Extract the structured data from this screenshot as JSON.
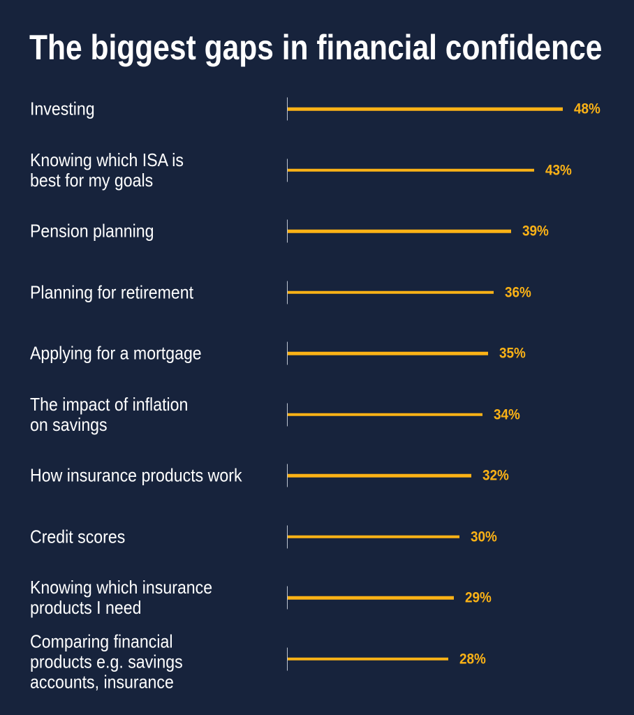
{
  "title": "The biggest gaps in financial confidence",
  "colors": {
    "background": "#17233C",
    "bar": "#FBB216",
    "value_label": "#FBB216",
    "category_label": "#FFFFFF",
    "title": "#FFFFFF",
    "axis_tick": "#BFC6D2"
  },
  "chart_data": {
    "type": "bar",
    "orientation": "horizontal",
    "title": "The biggest gaps in financial confidence",
    "xlabel": "",
    "ylabel": "",
    "xlim": [
      0,
      48
    ],
    "grid": false,
    "legend": false,
    "value_suffix": "%",
    "categories": [
      "Investing",
      "Knowing which ISA is best for my goals",
      "Pension planning",
      "Planning for retirement",
      "Applying for a mortgage",
      "The impact of inflation on savings",
      "How insurance products work",
      "Credit scores",
      "Knowing which insurance products I need",
      "Comparing financial products e.g. savings accounts, insurance"
    ],
    "category_lines": [
      [
        "Investing"
      ],
      [
        "Knowing which ISA is",
        "best for my goals"
      ],
      [
        "Pension planning"
      ],
      [
        "Planning for retirement"
      ],
      [
        "Applying for a mortgage"
      ],
      [
        "The impact of inflation",
        "on savings"
      ],
      [
        "How insurance products work"
      ],
      [
        "Credit scores"
      ],
      [
        "Knowing which insurance",
        "products I need"
      ],
      [
        "Comparing financial",
        "products e.g. savings",
        "accounts, insurance"
      ]
    ],
    "values": [
      48,
      43,
      39,
      36,
      35,
      34,
      32,
      30,
      29,
      28
    ],
    "value_labels": [
      "48%",
      "43%",
      "39%",
      "36%",
      "35%",
      "34%",
      "32%",
      "30%",
      "29%",
      "28%"
    ]
  }
}
